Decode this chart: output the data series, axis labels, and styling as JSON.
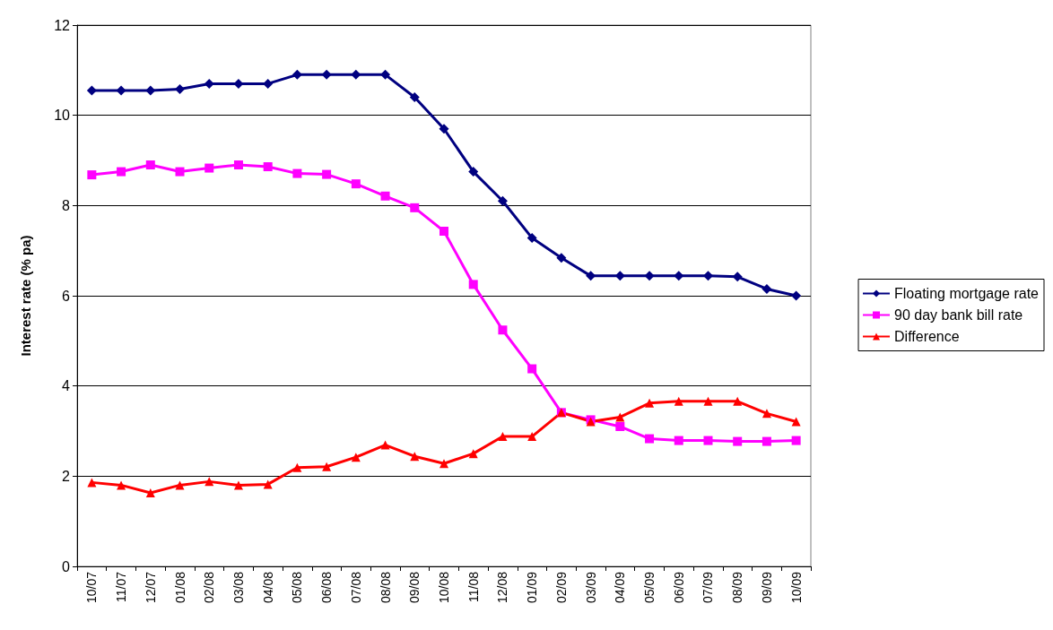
{
  "chart_data": {
    "type": "line",
    "ylabel": "Interest rate (% pa)",
    "categories": [
      "10/07",
      "11/07",
      "12/07",
      "01/08",
      "02/08",
      "03/08",
      "04/08",
      "05/08",
      "06/08",
      "07/08",
      "08/08",
      "09/08",
      "10/08",
      "11/08",
      "12/08",
      "01/09",
      "02/09",
      "03/09",
      "04/09",
      "05/09",
      "06/09",
      "07/09",
      "08/09",
      "09/09",
      "10/09"
    ],
    "series": [
      {
        "name": "Floating mortgage rate",
        "color": "#000080",
        "marker": "diamond",
        "values": [
          10.55,
          10.55,
          10.55,
          10.58,
          10.7,
          10.7,
          10.7,
          10.9,
          10.9,
          10.9,
          10.9,
          10.4,
          9.7,
          8.75,
          8.1,
          7.28,
          6.84,
          6.44,
          6.44,
          6.44,
          6.44,
          6.44,
          6.42,
          6.15,
          6.0
        ]
      },
      {
        "name": "90 day bank bill rate",
        "color": "#ff00ff",
        "marker": "square",
        "values": [
          8.68,
          8.75,
          8.9,
          8.75,
          8.83,
          8.9,
          8.86,
          8.71,
          8.69,
          8.48,
          8.21,
          7.95,
          7.43,
          6.25,
          5.24,
          4.38,
          3.41,
          3.25,
          3.1,
          2.83,
          2.79,
          2.79,
          2.77,
          2.77,
          2.79
        ]
      },
      {
        "name": "Difference",
        "color": "#ff0000",
        "marker": "triangle",
        "values": [
          1.86,
          1.8,
          1.63,
          1.8,
          1.88,
          1.8,
          1.82,
          2.19,
          2.21,
          2.42,
          2.69,
          2.44,
          2.28,
          2.5,
          2.88,
          2.88,
          3.41,
          3.21,
          3.31,
          3.62,
          3.66,
          3.66,
          3.66,
          3.39,
          3.21
        ]
      }
    ],
    "ylim": [
      0,
      12
    ],
    "yticks": [
      0,
      2,
      4,
      6,
      8,
      10,
      12
    ],
    "grid": "y",
    "legend": "right",
    "line_style": "solid"
  }
}
